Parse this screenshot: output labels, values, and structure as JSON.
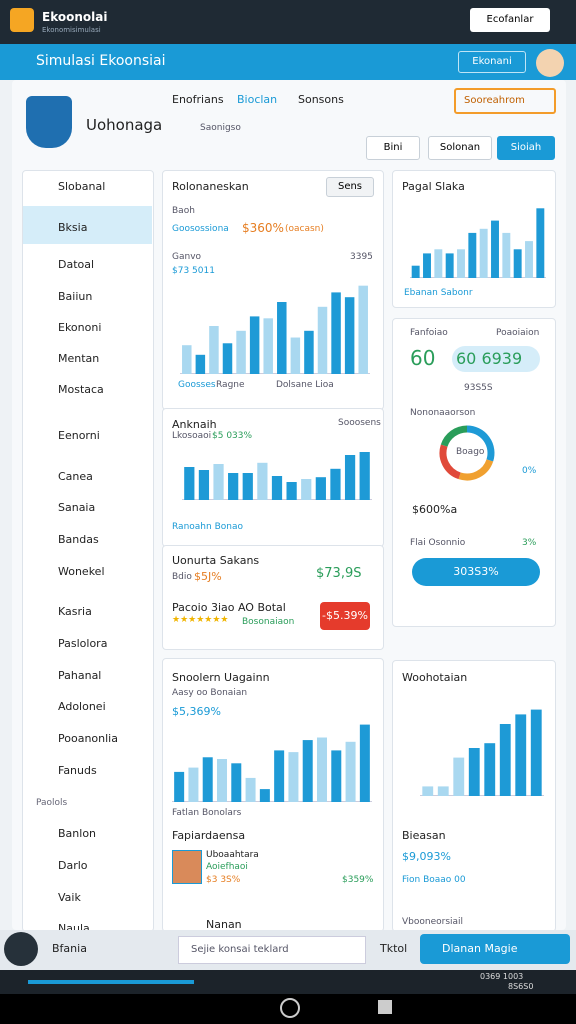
{
  "status_bar": {
    "app_name": "Ekoonolai",
    "app_subtitle": "Ekonomisimulasi",
    "button": "Ecofanlar"
  },
  "header": {
    "title": "Simulasi Ekoonsiai",
    "button": "Ekonani"
  },
  "window": {
    "brand": "Uohonaga",
    "brand_sub": "Saonigso",
    "nav": [
      "Enofrians",
      "Bioclan",
      "Sonsons"
    ],
    "search_button": "Sooreahrom",
    "actions": [
      "Bini",
      "Solonan",
      "Sioiah"
    ]
  },
  "sidebar": {
    "items": [
      "Slobanal",
      "Bksia",
      "Datoal",
      "Baiiun",
      "Ekononi",
      "Mentan",
      "Mostaca",
      "Eenorni",
      "Canea",
      "Sanaia",
      "Bandas",
      "Wonekel",
      "Kasria",
      "Paslolora",
      "Pahanal",
      "Adolonei",
      "Pooanonlia",
      "Fanuds"
    ],
    "section": "Paolols",
    "items2": [
      "Banlon",
      "Darlo",
      "Vaik",
      "Naula"
    ]
  },
  "cards": [
    {
      "title": "Rolonaneskan",
      "button": "Sens",
      "label": "Baoh",
      "sub": "Goosossiona",
      "value": "$360%",
      "tag": "(oacasn)",
      "chart_label": "Ganvo",
      "chart_value": "$73 5011",
      "chart_note": "3395",
      "footer": [
        "Goosses",
        "Ragne",
        "Dolsane Lioa"
      ],
      "chart": {
        "values": [
          30,
          20,
          50,
          32,
          45,
          60,
          58,
          75,
          38,
          45,
          70,
          85,
          80,
          92
        ],
        "colors": [
          "#a9d8f0",
          "#1e9ad6",
          "#a9d8f0",
          "#1e9ad6",
          "#a9d8f0",
          "#1e9ad6",
          "#a9d8f0",
          "#1e9ad6",
          "#a9d8f0",
          "#1e9ad6",
          "#a9d8f0",
          "#1e9ad6",
          "#1e9ad6",
          "#a9d8f0"
        ],
        "ylim": [
          0,
          100
        ]
      }
    },
    {
      "title": "Anknaih",
      "sub": "Lkosoaoi",
      "value": "$5 033%",
      "note": "Sooosens",
      "footer": "Ranoahn Bonao",
      "chart": {
        "values": [
          55,
          50,
          60,
          45,
          45,
          62,
          40,
          30,
          35,
          38,
          52,
          75,
          80
        ],
        "colors": [
          "#1e9ad6",
          "#1e9ad6",
          "#a9d8f0",
          "#1e9ad6",
          "#1e9ad6",
          "#a9d8f0",
          "#1e9ad6",
          "#1e9ad6",
          "#a9d8f0",
          "#1e9ad6",
          "#1e9ad6",
          "#1e9ad6",
          "#1e9ad6"
        ],
        "ylim": [
          0,
          100
        ]
      }
    },
    {
      "title": "Uonurta Sakans",
      "label": "Bdio",
      "value": "$5J%",
      "price": "$73,9S",
      "rating_label": "Pacoio 3iao AO Botal",
      "rating_note": "Bosonaiaon",
      "badge": "-$5.39%"
    },
    {
      "title": "Snoolern Uagainn",
      "sub": "Aasy oo Bonaian",
      "value": "$5,369%",
      "footer": "Fatlan Bonolars",
      "person_section": "Fapiardaensa",
      "person_name": "Uboaahtara",
      "person_sub": "Aoiefhaoi",
      "person_value": "$3 3S%",
      "person_amount": "$359%",
      "next": "Nanan",
      "chart": {
        "values": [
          35,
          40,
          52,
          50,
          45,
          28,
          15,
          60,
          58,
          72,
          75,
          60,
          70,
          90
        ],
        "colors": [
          "#1e9ad6",
          "#a9d8f0",
          "#1e9ad6",
          "#a9d8f0",
          "#1e9ad6",
          "#a9d8f0",
          "#1e9ad6",
          "#1e9ad6",
          "#a9d8f0",
          "#1e9ad6",
          "#a9d8f0",
          "#1e9ad6",
          "#a9d8f0",
          "#1e9ad6"
        ],
        "ylim": [
          0,
          100
        ]
      }
    }
  ],
  "right": [
    {
      "title": "Pagal Slaka",
      "footer": "Ebanan Sabonr",
      "chart": {
        "values": [
          15,
          30,
          35,
          30,
          35,
          55,
          60,
          70,
          55,
          35,
          45,
          85
        ],
        "colors": [
          "#1e9ad6",
          "#1e9ad6",
          "#a9d8f0",
          "#1e9ad6",
          "#a9d8f0",
          "#1e9ad6",
          "#a9d8f0",
          "#1e9ad6",
          "#a9d8f0",
          "#1e9ad6",
          "#a9d8f0",
          "#1e9ad6"
        ],
        "ylim": [
          0,
          100
        ]
      }
    },
    {
      "label": "Fanfoiao",
      "label2": "Poaoiaion",
      "big1": "60",
      "big2": "60 6939",
      "sub": "93S5S",
      "section": "Nononaaorson",
      "donut_text": "Boago",
      "legend_a": "0%",
      "amount": "$600%a",
      "small": "Flai Osonnio",
      "small_value": "3%",
      "button": "303S3%",
      "donut": {
        "values": [
          30,
          25,
          25,
          20
        ],
        "colors": [
          "#1e9ad6",
          "#f0a030",
          "#e04a3a",
          "#2a9d5a"
        ]
      }
    },
    {
      "title": "Woohotaian",
      "footer": "Bieasan",
      "value": "$9,093%",
      "note": "Fion Boaao 00",
      "chart": {
        "values": [
          10,
          10,
          40,
          50,
          55,
          75,
          85,
          90
        ],
        "colors": [
          "#a9d8f0",
          "#a9d8f0",
          "#a9d8f0",
          "#1e9ad6",
          "#1e9ad6",
          "#1e9ad6",
          "#1e9ad6",
          "#1e9ad6"
        ],
        "ylim": [
          0,
          100
        ]
      }
    },
    {
      "title": "Vbooneorsiail"
    }
  ],
  "bottom": {
    "label": "Bfania",
    "search": "Sejie konsai teklard",
    "tool": "Tktol",
    "button": "Dlanan Magie"
  },
  "taskbar": {
    "time": "0369 1003",
    "date": "8S6S0"
  }
}
